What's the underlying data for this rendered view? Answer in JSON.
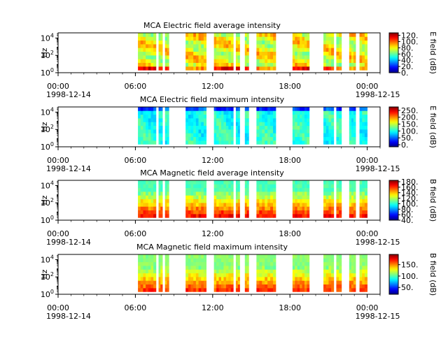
{
  "figure": {
    "instrument": "MCA",
    "time_axis": {
      "tick_labels": [
        "00:00",
        "06:00",
        "12:00",
        "18:00",
        "00:00"
      ],
      "tick_hours": [
        0,
        6,
        12,
        18,
        24
      ],
      "minor_tick_step_hours": 1,
      "start_date_label": "1998-12-14",
      "end_date_label": "1998-12-15",
      "range_hours": [
        0,
        25
      ]
    },
    "freq_axis": {
      "label": "Hz",
      "scale": "log",
      "tick_labels": [
        {
          "base": "10",
          "exp": "0"
        },
        {
          "base": "10",
          "exp": "2"
        },
        {
          "base": "10",
          "exp": "4"
        }
      ]
    }
  },
  "chart_data": [
    {
      "type": "heatmap",
      "title": "MCA  Electric field average intensity",
      "ylabel": "Hz",
      "yscale": "log",
      "colorbar": {
        "label": "E field (dB)",
        "ticks": [
          0,
          20,
          40,
          60,
          80,
          100,
          120
        ],
        "tick_labels": [
          "0.",
          "20.",
          "40.",
          "60.",
          "80.",
          "100.",
          "120."
        ],
        "range": [
          0,
          128
        ]
      },
      "data_intervals_hours": [
        [
          6.2,
          7.6
        ],
        [
          7.8,
          8.1
        ],
        [
          8.3,
          8.6
        ],
        [
          9.9,
          11.5
        ],
        [
          12.1,
          13.6
        ],
        [
          13.8,
          14.1
        ],
        [
          14.5,
          14.8
        ],
        [
          15.4,
          16.9
        ],
        [
          18.2,
          19.5
        ],
        [
          20.6,
          21.4
        ],
        [
          21.6,
          22.0
        ],
        [
          22.6,
          23.1
        ],
        [
          23.4,
          24.0
        ]
      ],
      "grid": false
    },
    {
      "type": "heatmap",
      "title": "MCA  Electric field maximum intensity",
      "ylabel": "Hz",
      "yscale": "log",
      "colorbar": {
        "label": "E field (dB)",
        "ticks": [
          0,
          50,
          100,
          150,
          200,
          250
        ],
        "tick_labels": [
          "0.",
          "50.",
          "100.",
          "150.",
          "200.",
          "250."
        ],
        "range": [
          -15,
          275
        ]
      },
      "data_intervals_hours": [
        [
          6.2,
          7.6
        ],
        [
          7.8,
          8.1
        ],
        [
          8.3,
          8.6
        ],
        [
          9.9,
          11.5
        ],
        [
          12.1,
          13.6
        ],
        [
          13.8,
          14.1
        ],
        [
          14.5,
          14.8
        ],
        [
          15.4,
          16.9
        ],
        [
          18.2,
          19.5
        ],
        [
          20.6,
          21.4
        ],
        [
          21.6,
          22.0
        ],
        [
          22.6,
          23.1
        ],
        [
          23.4,
          24.0
        ]
      ],
      "grid": false
    },
    {
      "type": "heatmap",
      "title": "MCA  Magnetic field average intensity",
      "ylabel": "Hz",
      "yscale": "log",
      "colorbar": {
        "label": "B field (dB)",
        "ticks": [
          40,
          60,
          80,
          100,
          120,
          140,
          160,
          180
        ],
        "tick_labels": [
          "40.",
          "60.",
          "80.",
          "100.",
          "120.",
          "140.",
          "160.",
          "180."
        ],
        "range": [
          40,
          185
        ]
      },
      "data_intervals_hours": [
        [
          6.2,
          7.6
        ],
        [
          7.8,
          8.1
        ],
        [
          8.3,
          8.6
        ],
        [
          9.9,
          11.5
        ],
        [
          12.1,
          13.6
        ],
        [
          13.8,
          14.1
        ],
        [
          14.5,
          14.8
        ],
        [
          15.4,
          16.9
        ],
        [
          18.2,
          19.5
        ],
        [
          20.6,
          21.4
        ],
        [
          21.6,
          22.0
        ],
        [
          22.6,
          23.1
        ],
        [
          23.4,
          24.0
        ]
      ],
      "grid": false
    },
    {
      "type": "heatmap",
      "title": "MCA  Magnetic field maximum intensity",
      "ylabel": "Hz",
      "yscale": "log",
      "colorbar": {
        "label": "B field (dB)",
        "ticks": [
          50,
          100,
          150
        ],
        "tick_labels": [
          "50.",
          "100.",
          "150."
        ],
        "range": [
          20,
          195
        ]
      },
      "data_intervals_hours": [
        [
          6.2,
          7.6
        ],
        [
          7.8,
          8.1
        ],
        [
          8.3,
          8.6
        ],
        [
          9.9,
          11.5
        ],
        [
          12.1,
          13.6
        ],
        [
          13.8,
          14.1
        ],
        [
          14.5,
          14.8
        ],
        [
          15.4,
          16.9
        ],
        [
          18.2,
          19.5
        ],
        [
          20.6,
          21.4
        ],
        [
          21.6,
          22.0
        ],
        [
          22.6,
          23.1
        ],
        [
          23.4,
          24.0
        ]
      ],
      "grid": false
    }
  ]
}
